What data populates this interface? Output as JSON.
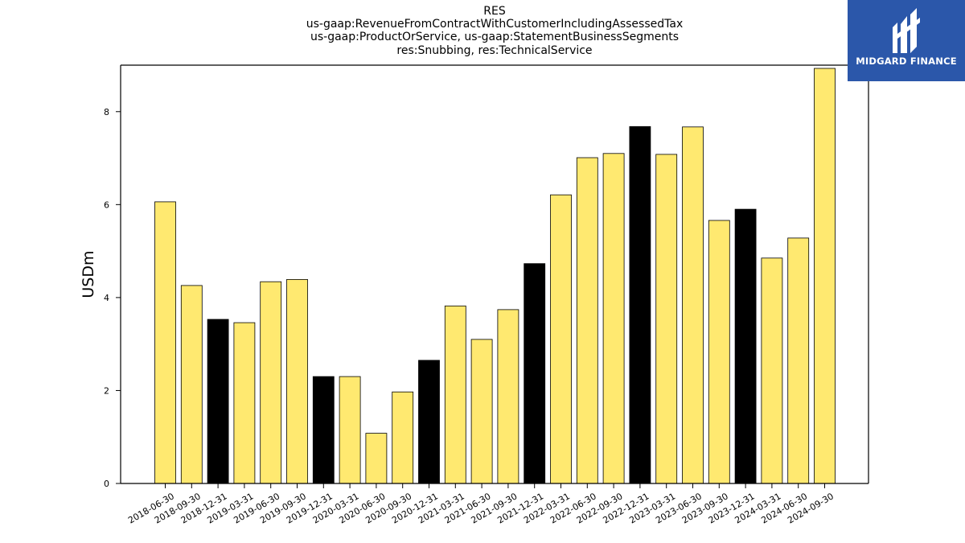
{
  "title_lines": [
    "RES",
    "us-gaap:RevenueFromContractWithCustomerIncludingAssessedTax",
    "us-gaap:ProductOrService, us-gaap:StatementBusinessSegments",
    "res:Snubbing, res:TechnicalService"
  ],
  "logo": {
    "text": "MIDGARD FINANCE",
    "icon": "midgard-logo-icon",
    "background": "#2b57aa"
  },
  "colors": {
    "quarter_bar": "#ffe970",
    "year_end_bar": "#000000",
    "bar_edge": "#000000"
  },
  "chart_data": {
    "type": "bar",
    "title": "RES us-gaap:RevenueFromContractWithCustomerIncludingAssessedTax us-gaap:ProductOrService, us-gaap:StatementBusinessSegments res:Snubbing, res:TechnicalService",
    "xlabel": "",
    "ylabel": "USDm",
    "ylim": [
      0,
      9
    ],
    "yticks": [
      0,
      2,
      4,
      6,
      8
    ],
    "grid": false,
    "categories": [
      "2018-06-30",
      "2018-09-30",
      "2018-12-31",
      "2019-03-31",
      "2019-06-30",
      "2019-09-30",
      "2019-12-31",
      "2020-03-31",
      "2020-06-30",
      "2020-09-30",
      "2020-12-31",
      "2021-03-31",
      "2021-06-30",
      "2021-09-30",
      "2021-12-31",
      "2022-03-31",
      "2022-06-30",
      "2022-09-30",
      "2022-12-31",
      "2023-03-31",
      "2023-06-30",
      "2023-09-30",
      "2023-12-31",
      "2024-03-31",
      "2024-06-30",
      "2024-09-30"
    ],
    "values": [
      6.06,
      4.26,
      3.53,
      3.46,
      4.34,
      4.39,
      2.3,
      2.3,
      1.08,
      1.97,
      2.65,
      3.82,
      3.1,
      3.74,
      4.73,
      6.21,
      7.01,
      7.1,
      7.68,
      7.08,
      7.67,
      5.66,
      5.9,
      4.85,
      5.28,
      8.93
    ]
  }
}
